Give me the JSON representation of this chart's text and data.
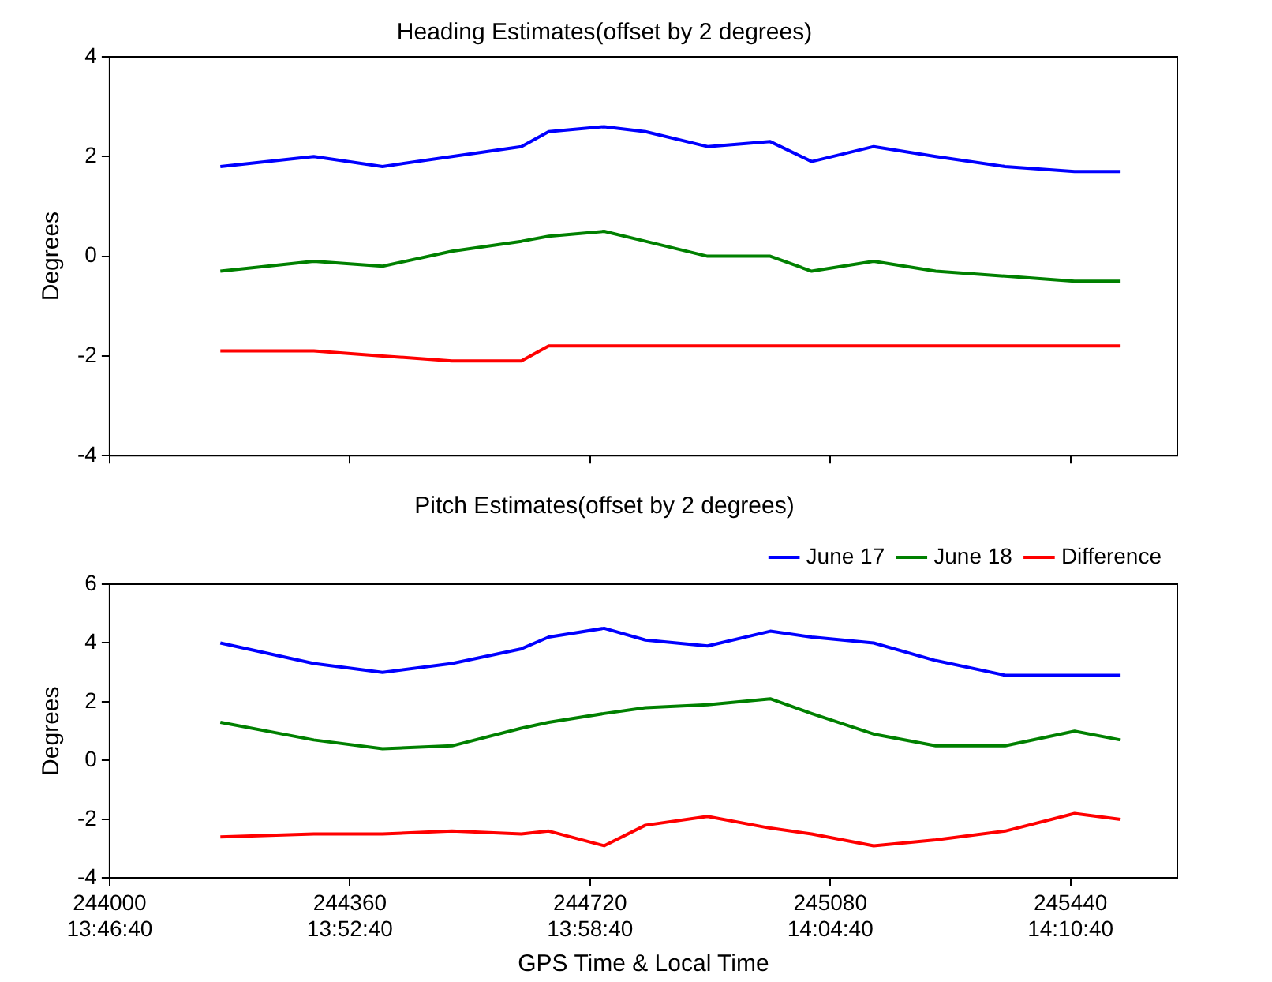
{
  "chart_data": [
    {
      "type": "line",
      "title": "Heading Estimates(offset by 2 degrees)",
      "ylabel": "Degrees",
      "x": [
        244166,
        244306,
        244409,
        244513,
        244617,
        244658,
        244741,
        244803,
        244896,
        244990,
        245052,
        245145,
        245238,
        245342,
        245446,
        245515
      ],
      "xlim": [
        244000,
        245600
      ],
      "xticks": [
        244000,
        244360,
        244720,
        245080,
        245440
      ],
      "ylim": [
        -4,
        4
      ],
      "yticks": [
        -4,
        -2,
        0,
        2,
        4
      ],
      "tick_labels": "y",
      "grid": false,
      "legend": false,
      "marker": "none",
      "line_style": "solid",
      "series": [
        {
          "color": "#0000ff",
          "values": [
            1.8,
            2.0,
            1.8,
            2.0,
            2.2,
            2.5,
            2.6,
            2.5,
            2.2,
            2.3,
            1.9,
            2.2,
            2.0,
            1.8,
            1.7,
            1.7
          ]
        },
        {
          "color": "#008000",
          "values": [
            -0.3,
            -0.1,
            -0.2,
            0.1,
            0.3,
            0.4,
            0.5,
            0.3,
            0.0,
            0.0,
            -0.3,
            -0.1,
            -0.3,
            -0.4,
            -0.5,
            -0.5
          ]
        },
        {
          "color": "#ff0000",
          "values": [
            -1.9,
            -1.9,
            -2.0,
            -2.1,
            -2.1,
            -1.8,
            -1.8,
            -1.8,
            -1.8,
            -1.8,
            -1.8,
            -1.8,
            -1.8,
            -1.8,
            -1.8,
            -1.8
          ]
        }
      ]
    },
    {
      "type": "line",
      "title": "Pitch Estimates(offset by 2 degrees)",
      "xlabel": "GPS Time & Local Time",
      "ylabel": "Degrees",
      "x": [
        244166,
        244306,
        244409,
        244513,
        244617,
        244658,
        244741,
        244803,
        244896,
        244990,
        245052,
        245145,
        245238,
        245342,
        245446,
        245515
      ],
      "xlim": [
        244000,
        245600
      ],
      "xticks": [
        244000,
        244360,
        244720,
        245080,
        245440
      ],
      "annotations": [
        "13:46:40",
        "13:52:40",
        "13:58:40",
        "14:04:40",
        "14:10:40"
      ],
      "ylim": [
        -4,
        6
      ],
      "yticks": [
        -4,
        -2,
        0,
        2,
        4,
        6
      ],
      "grid": false,
      "legend": "top right",
      "marker": "none",
      "line_style": "solid",
      "series": [
        {
          "name": "June 17",
          "color": "#0000ff",
          "values": [
            4.0,
            3.3,
            3.0,
            3.3,
            3.8,
            4.2,
            4.5,
            4.1,
            3.9,
            4.4,
            4.2,
            4.0,
            3.4,
            2.9,
            2.9,
            2.9
          ]
        },
        {
          "name": "June 18",
          "color": "#008000",
          "values": [
            1.3,
            0.7,
            0.4,
            0.5,
            1.1,
            1.3,
            1.6,
            1.8,
            1.9,
            2.1,
            1.6,
            0.9,
            0.5,
            0.5,
            1.0,
            0.7
          ]
        },
        {
          "name": "Difference",
          "color": "#ff0000",
          "values": [
            -2.6,
            -2.5,
            -2.5,
            -2.4,
            -2.5,
            -2.4,
            -2.9,
            -2.2,
            -1.9,
            -2.3,
            -2.5,
            -2.9,
            -2.7,
            -2.4,
            -1.8,
            -2.0
          ]
        }
      ]
    }
  ]
}
